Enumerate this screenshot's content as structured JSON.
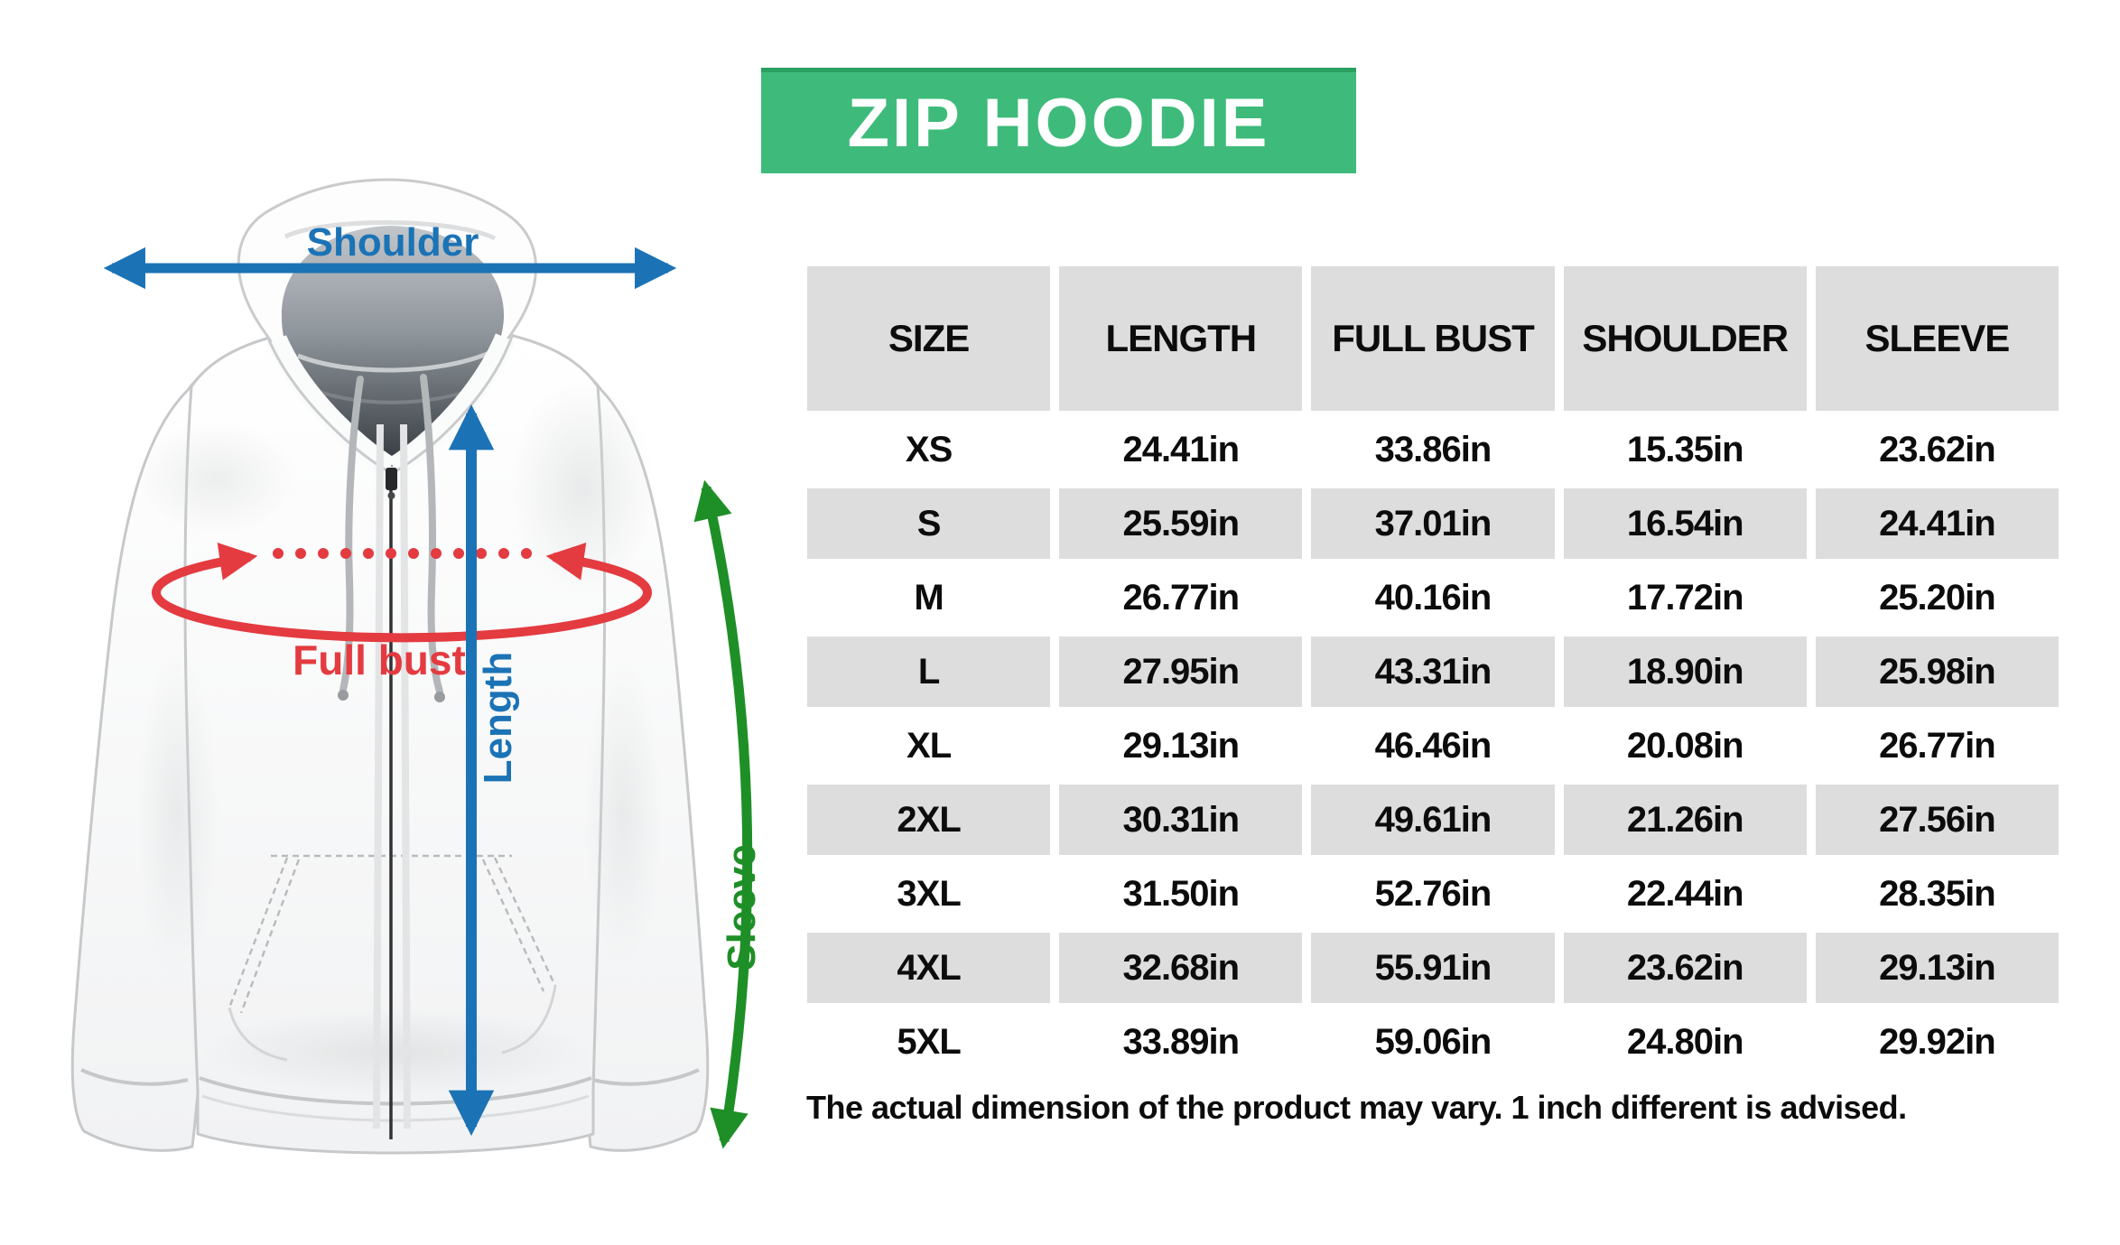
{
  "banner": {
    "title": "ZIP HOODIE",
    "background_color": "#3EBB7A"
  },
  "diagram": {
    "shoulder_label": "Shoulder",
    "full_bust_label": "Full bust",
    "length_label": "Length",
    "sleeve_label": "Sleeve"
  },
  "size_chart": {
    "columns": [
      "SIZE",
      "LENGTH",
      "FULL BUST",
      "SHOULDER",
      "SLEEVE"
    ],
    "rows": [
      {
        "size": "XS",
        "length": "24.41in",
        "full_bust": "33.86in",
        "shoulder": "15.35in",
        "sleeve": "23.62in"
      },
      {
        "size": "S",
        "length": "25.59in",
        "full_bust": "37.01in",
        "shoulder": "16.54in",
        "sleeve": "24.41in"
      },
      {
        "size": "M",
        "length": "26.77in",
        "full_bust": "40.16in",
        "shoulder": "17.72in",
        "sleeve": "25.20in"
      },
      {
        "size": "L",
        "length": "27.95in",
        "full_bust": "43.31in",
        "shoulder": "18.90in",
        "sleeve": "25.98in"
      },
      {
        "size": "XL",
        "length": "29.13in",
        "full_bust": "46.46in",
        "shoulder": "20.08in",
        "sleeve": "26.77in"
      },
      {
        "size": "2XL",
        "length": "30.31in",
        "full_bust": "49.61in",
        "shoulder": "21.26in",
        "sleeve": "27.56in"
      },
      {
        "size": "3XL",
        "length": "31.50in",
        "full_bust": "52.76in",
        "shoulder": "22.44in",
        "sleeve": "28.35in"
      },
      {
        "size": "4XL",
        "length": "32.68in",
        "full_bust": "55.91in",
        "shoulder": "23.62in",
        "sleeve": "29.13in"
      },
      {
        "size": "5XL",
        "length": "33.89in",
        "full_bust": "59.06in",
        "shoulder": "24.80in",
        "sleeve": "29.92in"
      }
    ],
    "stripe_color": "#DDDDDD"
  },
  "note": "The actual dimension of the product may vary. 1 inch different is advised.",
  "colors": {
    "annotation_blue": "#1B73B6",
    "annotation_red": "#E33B40",
    "annotation_green": "#1E8F27",
    "banner_green": "#3EBB7A",
    "table_gray": "#DDDDDD"
  }
}
